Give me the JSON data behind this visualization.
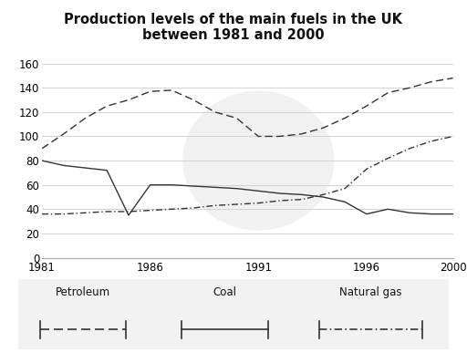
{
  "title": "Production levels of the main fuels in the UK\nbetween 1981 and 2000",
  "years": [
    1981,
    1982,
    1983,
    1984,
    1985,
    1986,
    1987,
    1988,
    1989,
    1990,
    1991,
    1992,
    1993,
    1994,
    1995,
    1996,
    1997,
    1998,
    1999,
    2000
  ],
  "petroleum": [
    80,
    76,
    74,
    72,
    35,
    60,
    60,
    59,
    58,
    57,
    55,
    53,
    52,
    50,
    46,
    36,
    40,
    37,
    36,
    36
  ],
  "coal": [
    90,
    102,
    115,
    125,
    130,
    137,
    138,
    130,
    120,
    115,
    100,
    100,
    102,
    107,
    115,
    125,
    136,
    140,
    145,
    148
  ],
  "natural_gas": [
    36,
    36,
    37,
    38,
    38,
    39,
    40,
    41,
    43,
    44,
    45,
    47,
    48,
    52,
    57,
    73,
    82,
    90,
    96,
    100
  ],
  "ylim": [
    0,
    160
  ],
  "yticks": [
    0,
    20,
    40,
    60,
    80,
    100,
    120,
    140,
    160
  ],
  "xticks": [
    1981,
    1986,
    1991,
    1996,
    2000
  ],
  "bg_color": "#ffffff",
  "line_color": "#333333",
  "grid_color": "#cccccc",
  "watermark_color": "#e8e8e8",
  "legend_items": [
    {
      "label": "Petroleum",
      "style": "dashed"
    },
    {
      "label": "Coal",
      "style": "solid"
    },
    {
      "label": "Natural gas",
      "style": "dashdot"
    }
  ]
}
